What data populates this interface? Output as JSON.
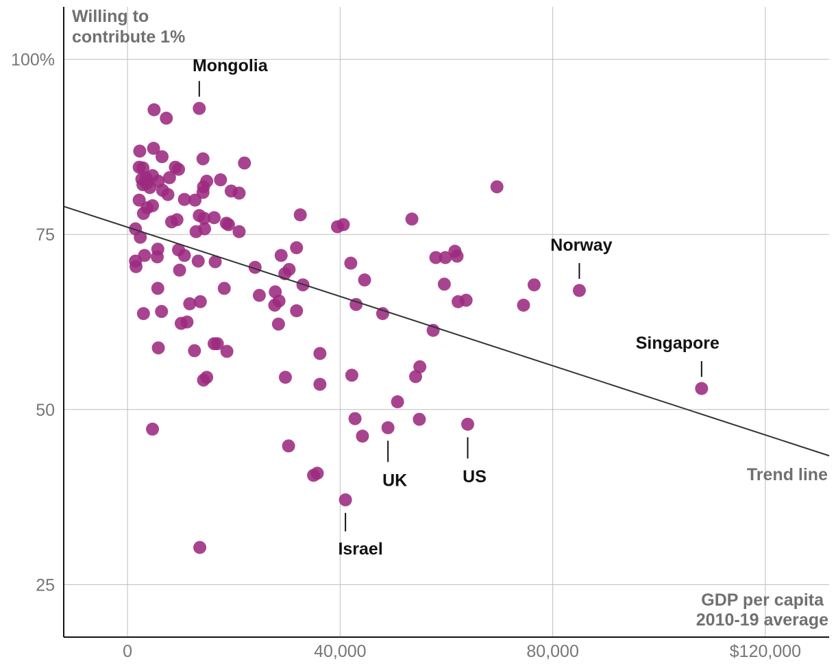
{
  "chart_data": {
    "type": "scatter",
    "title": "",
    "ylabel_lines": [
      "Willing to",
      "contribute 1%"
    ],
    "xlabel_lines": [
      "GDP per capita",
      "2010-19 average"
    ],
    "xlim": [
      -12000,
      132000
    ],
    "ylim": [
      17.5,
      107.5
    ],
    "x_ticks": [
      {
        "value": 0,
        "label": "0"
      },
      {
        "value": 40000,
        "label": "40,000"
      },
      {
        "value": 80000,
        "label": "80,000"
      },
      {
        "value": 120000,
        "label": "$120,000"
      }
    ],
    "y_ticks": [
      {
        "value": 100,
        "label": "100%"
      },
      {
        "value": 75,
        "label": "75"
      },
      {
        "value": 50,
        "label": "50"
      },
      {
        "value": 25,
        "label": "25"
      }
    ],
    "x_gridlines": [
      0,
      40000,
      80000,
      120000
    ],
    "y_gridlines": [
      100,
      75,
      50,
      25
    ],
    "grid": true,
    "point_color": "#9c2a7f",
    "trend_line": {
      "label": "Trend line",
      "start": [
        -12000,
        79
      ],
      "end": [
        132000,
        43.4
      ]
    },
    "annotations": [
      {
        "label": "Mongolia",
        "x": 13500,
        "y": 93
      },
      {
        "label": "Norway",
        "x": 85000,
        "y": 67
      },
      {
        "label": "Singapore",
        "x": 108000,
        "y": 53
      },
      {
        "label": "UK",
        "x": 49000,
        "y": 47.4
      },
      {
        "label": "US",
        "x": 64000,
        "y": 47.9
      },
      {
        "label": "Israel",
        "x": 41000,
        "y": 37.1
      }
    ],
    "points": [
      [
        13500,
        93
      ],
      [
        5000,
        92.8
      ],
      [
        7300,
        91.6
      ],
      [
        4900,
        87.3
      ],
      [
        2300,
        86.9
      ],
      [
        6500,
        86.1
      ],
      [
        14200,
        85.8
      ],
      [
        22000,
        85.2
      ],
      [
        2200,
        84.6
      ],
      [
        2900,
        84.5
      ],
      [
        9000,
        84.6
      ],
      [
        9600,
        84.3
      ],
      [
        4700,
        83.4
      ],
      [
        3500,
        83.1
      ],
      [
        5800,
        82.6
      ],
      [
        2700,
        82.9
      ],
      [
        7900,
        83.1
      ],
      [
        14900,
        82.6
      ],
      [
        17500,
        82.8
      ],
      [
        3600,
        82.3
      ],
      [
        2900,
        82.1
      ],
      [
        14300,
        81.8
      ],
      [
        4200,
        81.7
      ],
      [
        6600,
        81.3
      ],
      [
        14200,
        81
      ],
      [
        19500,
        81.2
      ],
      [
        21000,
        80.9
      ],
      [
        69500,
        81.8
      ],
      [
        7600,
        80.7
      ],
      [
        2200,
        79.9
      ],
      [
        10700,
        80
      ],
      [
        12700,
        79.9
      ],
      [
        3700,
        78.8
      ],
      [
        4700,
        79.1
      ],
      [
        3000,
        78
      ],
      [
        13500,
        77.7
      ],
      [
        14400,
        77.3
      ],
      [
        16300,
        77.4
      ],
      [
        53500,
        77.2
      ],
      [
        32500,
        77.8
      ],
      [
        9300,
        77.1
      ],
      [
        8300,
        76.8
      ],
      [
        18600,
        76.6
      ],
      [
        19000,
        76.4
      ],
      [
        40600,
        76.4
      ],
      [
        39500,
        76.1
      ],
      [
        1500,
        75.8
      ],
      [
        14500,
        75.8
      ],
      [
        12900,
        75.4
      ],
      [
        21000,
        75.4
      ],
      [
        2400,
        74.6
      ],
      [
        5700,
        72.9
      ],
      [
        9600,
        72.8
      ],
      [
        31800,
        73.1
      ],
      [
        61600,
        72.6
      ],
      [
        3200,
        72
      ],
      [
        10700,
        72
      ],
      [
        5600,
        71.8
      ],
      [
        58000,
        71.7
      ],
      [
        59800,
        71.7
      ],
      [
        62000,
        71.9
      ],
      [
        1500,
        71.2
      ],
      [
        13300,
        71.2
      ],
      [
        16500,
        71.1
      ],
      [
        28900,
        72
      ],
      [
        42000,
        70.9
      ],
      [
        1600,
        70.4
      ],
      [
        24000,
        70.3
      ],
      [
        30400,
        70
      ],
      [
        9800,
        69.9
      ],
      [
        29600,
        69.4
      ],
      [
        44600,
        68.5
      ],
      [
        59600,
        67.9
      ],
      [
        33000,
        67.8
      ],
      [
        76500,
        67.8
      ],
      [
        85000,
        67
      ],
      [
        5700,
        67.3
      ],
      [
        18200,
        67.3
      ],
      [
        27800,
        66.8
      ],
      [
        24800,
        66.3
      ],
      [
        28500,
        65.5
      ],
      [
        13700,
        65.4
      ],
      [
        11700,
        65.1
      ],
      [
        27700,
        64.9
      ],
      [
        43000,
        65
      ],
      [
        62200,
        65.4
      ],
      [
        63700,
        65.6
      ],
      [
        74500,
        64.9
      ],
      [
        3000,
        63.7
      ],
      [
        6400,
        64
      ],
      [
        31800,
        64.1
      ],
      [
        48000,
        63.7
      ],
      [
        11200,
        62.5
      ],
      [
        10100,
        62.3
      ],
      [
        28400,
        62.2
      ],
      [
        57500,
        61.3
      ],
      [
        16300,
        59.4
      ],
      [
        16900,
        59.4
      ],
      [
        5800,
        58.8
      ],
      [
        12600,
        58.4
      ],
      [
        18700,
        58.3
      ],
      [
        36200,
        58
      ],
      [
        55000,
        56.1
      ],
      [
        42200,
        54.9
      ],
      [
        54200,
        54.7
      ],
      [
        29700,
        54.6
      ],
      [
        14900,
        54.6
      ],
      [
        14300,
        54.2
      ],
      [
        36200,
        53.6
      ],
      [
        108000,
        53
      ],
      [
        50800,
        51.1
      ],
      [
        42800,
        48.7
      ],
      [
        54900,
        48.6
      ],
      [
        49000,
        47.4
      ],
      [
        64000,
        47.9
      ],
      [
        4700,
        47.2
      ],
      [
        44200,
        46.2
      ],
      [
        30300,
        44.8
      ],
      [
        35700,
        40.9
      ],
      [
        35000,
        40.6
      ],
      [
        41000,
        37.1
      ],
      [
        13600,
        30.3
      ]
    ]
  }
}
